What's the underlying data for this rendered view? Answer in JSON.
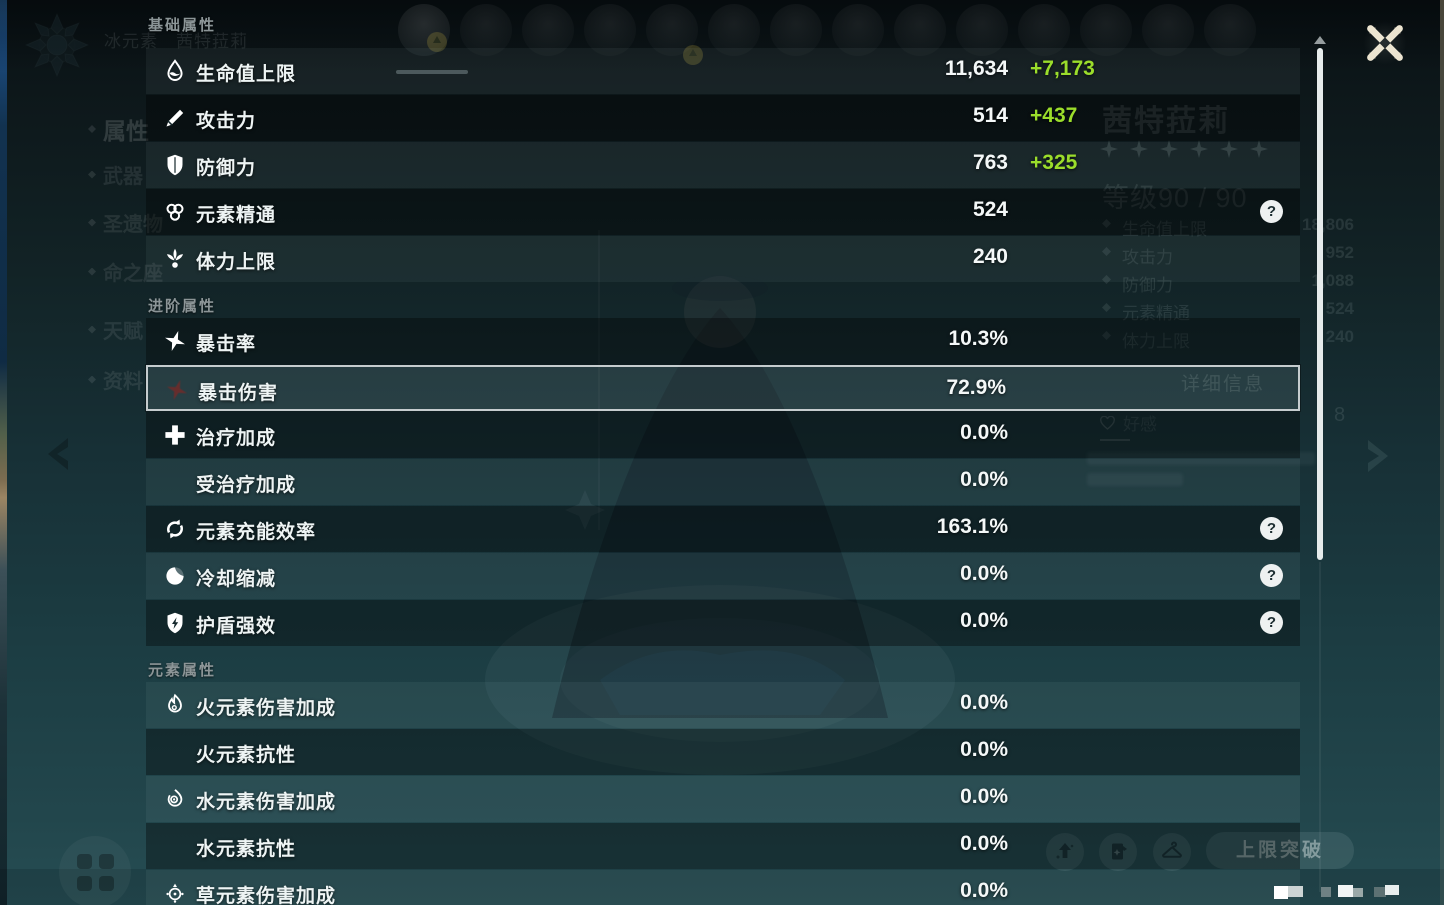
{
  "colors": {
    "accent_green": "#9bdd2b",
    "selected_border": "#ccd2d4",
    "panel_text": "#eef4f4",
    "header_text": "#8c9597"
  },
  "icons": {
    "help_glyph": "?"
  },
  "panel": {
    "sections": [
      {
        "title": "基础属性",
        "rows": [
          {
            "key": "hp",
            "icon": "hp",
            "label": "生命值上限",
            "value": "11,634",
            "bonus": "+7,173"
          },
          {
            "key": "atk",
            "icon": "atk",
            "label": "攻击力",
            "value": "514",
            "bonus": "+437"
          },
          {
            "key": "def",
            "icon": "def",
            "label": "防御力",
            "value": "763",
            "bonus": "+325"
          },
          {
            "key": "elemental-mastery",
            "icon": "em",
            "label": "元素精通",
            "value": "524",
            "help": true
          },
          {
            "key": "stamina",
            "icon": "stamina",
            "label": "体力上限",
            "value": "240"
          }
        ]
      },
      {
        "title": "进阶属性",
        "rows": [
          {
            "key": "crit-rate",
            "icon": "crit",
            "label": "暴击率",
            "value": "10.3%"
          },
          {
            "key": "crit-dmg",
            "icon": "crit",
            "icon_tint": "red",
            "label": "暴击伤害",
            "value": "72.9%",
            "selected": true
          },
          {
            "key": "healing-bonus",
            "icon": "healing",
            "label": "治疗加成",
            "value": "0.0%"
          },
          {
            "key": "incoming-healing",
            "icon": null,
            "label": "受治疗加成",
            "value": "0.0%"
          },
          {
            "key": "energy-recharge",
            "icon": "recharge",
            "label": "元素充能效率",
            "value": "163.1%",
            "help": true
          },
          {
            "key": "cd-reduction",
            "icon": "cooldown",
            "label": "冷却缩减",
            "value": "0.0%",
            "help": true
          },
          {
            "key": "shield-strength",
            "icon": "shield-bolt",
            "label": "护盾强效",
            "value": "0.0%",
            "help": true
          }
        ]
      },
      {
        "title": "元素属性",
        "rows": [
          {
            "key": "pyro-dmg-bonus",
            "icon": "pyro",
            "label": "火元素伤害加成",
            "value": "0.0%"
          },
          {
            "key": "pyro-res",
            "icon": null,
            "label": "火元素抗性",
            "value": "0.0%"
          },
          {
            "key": "hydro-dmg-bonus",
            "icon": "hydro",
            "label": "水元素伤害加成",
            "value": "0.0%"
          },
          {
            "key": "hydro-res",
            "icon": null,
            "label": "水元素抗性",
            "value": "0.0%"
          },
          {
            "key": "dendro-dmg-bonus",
            "icon": "dendro",
            "label": "草元素伤害加成",
            "value": "0.0%"
          }
        ]
      }
    ]
  },
  "background": {
    "element_line": "冰元素　茜特菈莉",
    "left_menu": [
      "属性",
      "武器",
      "圣遗物",
      "命之座",
      "天赋",
      "资料"
    ],
    "character": {
      "name": "茜特菈莉",
      "stars": 6,
      "level_label": "等级90 / 90",
      "stats": [
        {
          "label": "生命值上限",
          "value": "18,806"
        },
        {
          "label": "攻击力",
          "value": "952"
        },
        {
          "label": "防御力",
          "value": "1,088"
        },
        {
          "label": "元素精通",
          "value": "524"
        },
        {
          "label": "体力上限",
          "value": "240"
        }
      ],
      "details_label": "详细信息",
      "friendship_label": "好感",
      "fragment": "8"
    },
    "ascend_label": "上限突破"
  }
}
